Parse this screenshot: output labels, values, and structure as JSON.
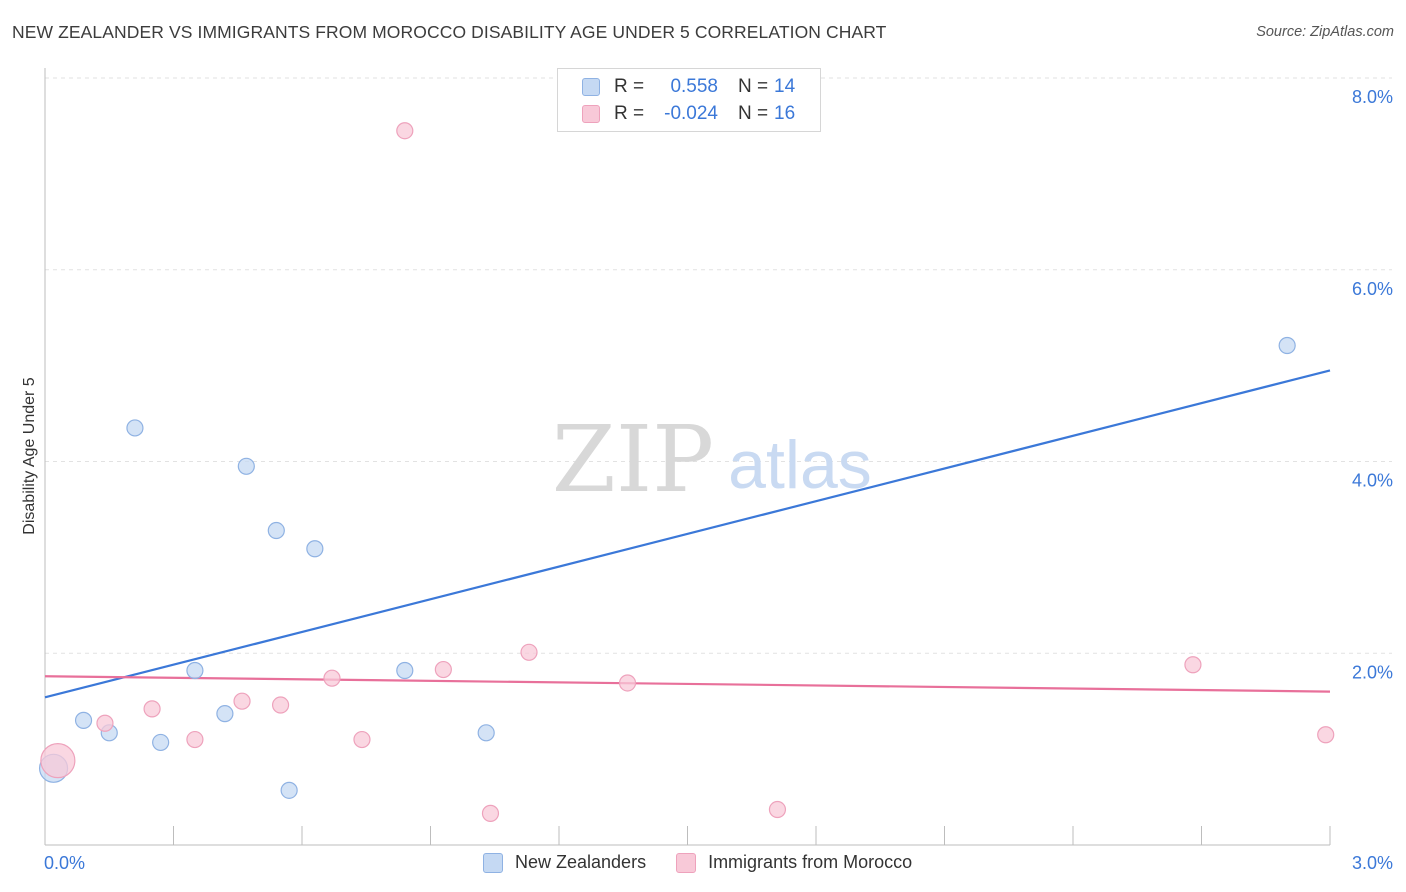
{
  "title": "NEW ZEALANDER VS IMMIGRANTS FROM MOROCCO DISABILITY AGE UNDER 5 CORRELATION CHART",
  "source": "Source: ZipAtlas.com",
  "watermark": {
    "zip": "ZIP",
    "atlas": "atlas"
  },
  "legend": {
    "rows": [
      {
        "r_label": "R =",
        "r_value": "0.558",
        "n_label": "N =",
        "n_value": "14"
      },
      {
        "r_label": "R =",
        "r_value": "-0.024",
        "n_label": "N =",
        "n_value": "16"
      }
    ]
  },
  "chart_data": {
    "type": "scatter",
    "title": "NEW ZEALANDER VS IMMIGRANTS FROM MOROCCO DISABILITY AGE UNDER 5 CORRELATION CHART",
    "xlabel": "",
    "ylabel": "Disability Age Under 5",
    "xlim": [
      0,
      3.0
    ],
    "ylim": [
      0,
      8.0
    ],
    "x_tick_labels": [
      "0.0%",
      "3.0%"
    ],
    "y_ticks": [
      2.0,
      4.0,
      6.0,
      8.0
    ],
    "y_tick_labels": [
      "2.0%",
      "4.0%",
      "6.0%",
      "8.0%"
    ],
    "grid": true,
    "legend_position": "top-center",
    "colors": {
      "blue": "#3b78d8",
      "blue_fill": "#c5d9f3",
      "pink": "#e8709a",
      "pink_fill": "#f8c9d8"
    },
    "series": [
      {
        "name": "New Zealanders",
        "color": "#3b78d8",
        "points": [
          [
            0.02,
            0.8,
            2
          ],
          [
            0.09,
            1.3,
            1
          ],
          [
            0.15,
            1.17,
            1
          ],
          [
            0.21,
            4.35,
            1
          ],
          [
            0.27,
            1.07,
            1
          ],
          [
            0.35,
            1.82,
            1
          ],
          [
            0.42,
            1.37,
            1
          ],
          [
            0.47,
            3.95,
            1
          ],
          [
            0.54,
            3.28,
            1
          ],
          [
            0.57,
            0.57,
            1
          ],
          [
            0.63,
            3.09,
            1
          ],
          [
            0.84,
            1.82,
            1
          ],
          [
            1.03,
            1.17,
            1
          ],
          [
            2.9,
            5.21,
            1
          ]
        ],
        "trend": {
          "x": [
            0.0,
            3.0
          ],
          "y": [
            1.54,
            4.95
          ]
        }
      },
      {
        "name": "Immigrants from Morocco",
        "color": "#e8709a",
        "points": [
          [
            0.03,
            0.88,
            3
          ],
          [
            0.14,
            1.27,
            1
          ],
          [
            0.25,
            1.42,
            1
          ],
          [
            0.35,
            1.1,
            1
          ],
          [
            0.46,
            1.5,
            1
          ],
          [
            0.55,
            1.46,
            1
          ],
          [
            0.67,
            1.74,
            1
          ],
          [
            0.74,
            1.1,
            1
          ],
          [
            0.84,
            7.45,
            1
          ],
          [
            0.93,
            1.83,
            1
          ],
          [
            1.04,
            0.33,
            1
          ],
          [
            1.13,
            2.01,
            1
          ],
          [
            1.36,
            1.69,
            1
          ],
          [
            1.71,
            0.37,
            1
          ],
          [
            2.68,
            1.88,
            1
          ],
          [
            2.99,
            1.15,
            1
          ]
        ],
        "trend": {
          "x": [
            0.0,
            3.0
          ],
          "y": [
            1.76,
            1.6
          ]
        }
      }
    ]
  }
}
